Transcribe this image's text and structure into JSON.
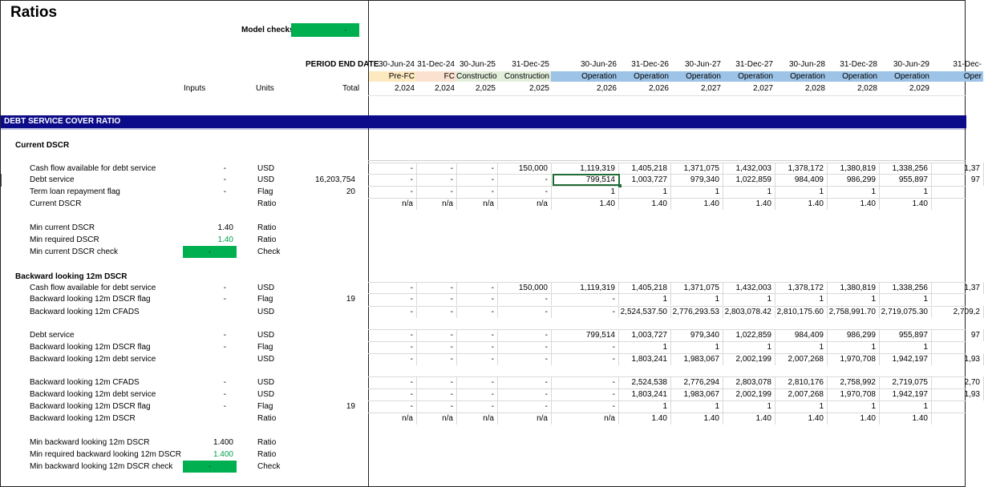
{
  "sheet": {
    "title": "Ratios",
    "model_checks_label": "Model checks",
    "model_checks_value": "-",
    "period_end_label": "PERIOD END DATE",
    "col_inputs": "Inputs",
    "col_units": "Units",
    "col_total": "Total",
    "section_band": "DEBT SERVICE COVER RATIO"
  },
  "colors": {
    "band": "#0c0c8a",
    "check_green": "#00b050",
    "prefc": "#fde9c0",
    "fc": "#fbe1cf",
    "construction": "#e2efda",
    "operation": "#9dc3e6"
  },
  "periods": [
    {
      "date": "30-Jun-24",
      "phase": "Pre-FC",
      "year": "2,024",
      "color": "#fde9c0"
    },
    {
      "date": "31-Dec-24",
      "phase": "FC",
      "year": "2,024",
      "color": "#fbe1cf"
    },
    {
      "date": "30-Jun-25",
      "phase": "Construction",
      "year": "2,025",
      "color": "#e2efda"
    },
    {
      "date": "31-Dec-25",
      "phase": "Construction",
      "year": "2,025",
      "color": "#e2efda"
    },
    {
      "date": "30-Jun-26",
      "phase": "Operation",
      "year": "2,026",
      "color": "#9dc3e6"
    },
    {
      "date": "31-Dec-26",
      "phase": "Operation",
      "year": "2,026",
      "color": "#9dc3e6"
    },
    {
      "date": "30-Jun-27",
      "phase": "Operation",
      "year": "2,027",
      "color": "#9dc3e6"
    },
    {
      "date": "31-Dec-27",
      "phase": "Operation",
      "year": "2,027",
      "color": "#9dc3e6"
    },
    {
      "date": "30-Jun-28",
      "phase": "Operation",
      "year": "2,028",
      "color": "#9dc3e6"
    },
    {
      "date": "31-Dec-28",
      "phase": "Operation",
      "year": "2,028",
      "color": "#9dc3e6"
    },
    {
      "date": "30-Jun-29",
      "phase": "Operation",
      "year": "2,029",
      "color": "#9dc3e6"
    },
    {
      "date": "31-Dec-",
      "phase": "Oper",
      "year": "",
      "color": "#9dc3e6"
    }
  ],
  "current_dscr": {
    "heading": "Current DSCR",
    "rows": [
      {
        "label": "Cash flow available for debt service",
        "input": "-",
        "unit": "USD",
        "total": "",
        "vals": [
          "-",
          "-",
          "-",
          "150,000",
          "1,119,319",
          "1,405,218",
          "1,371,075",
          "1,432,003",
          "1,378,172",
          "1,380,819",
          "1,338,256",
          "1,37"
        ]
      },
      {
        "label": "Debt service",
        "input": "-",
        "unit": "USD",
        "total": "16,203,754",
        "vals": [
          "-",
          "-",
          "-",
          "-",
          "799,514",
          "1,003,727",
          "979,340",
          "1,022,859",
          "984,409",
          "986,299",
          "955,897",
          "97"
        ]
      },
      {
        "label": "Term loan repayment flag",
        "input": "-",
        "unit": "Flag",
        "total": "20",
        "vals": [
          "-",
          "-",
          "-",
          "-",
          "1",
          "1",
          "1",
          "1",
          "1",
          "1",
          "1",
          ""
        ]
      },
      {
        "label": "Current DSCR",
        "input": "",
        "unit": "Ratio",
        "total": "",
        "vals": [
          "n/a",
          "n/a",
          "n/a",
          "n/a",
          "1.40",
          "1.40",
          "1.40",
          "1.40",
          "1.40",
          "1.40",
          "1.40",
          ""
        ]
      }
    ],
    "min_rows": [
      {
        "label": "Min current DSCR",
        "input": "1.40",
        "unit": "Ratio"
      },
      {
        "label": "Min required DSCR",
        "input": "1.40",
        "unit": "Ratio"
      },
      {
        "label": "Min current DSCR check",
        "input": "-",
        "unit": "Check"
      }
    ]
  },
  "backward": {
    "heading": "Backward looking 12m DSCR",
    "block1": [
      {
        "label": "Cash flow available for debt service",
        "input": "-",
        "unit": "USD",
        "total": "",
        "vals": [
          "-",
          "-",
          "-",
          "150,000",
          "1,119,319",
          "1,405,218",
          "1,371,075",
          "1,432,003",
          "1,378,172",
          "1,380,819",
          "1,338,256",
          "1,37"
        ]
      },
      {
        "label": "Backward looking 12m DSCR flag",
        "input": "-",
        "unit": "Flag",
        "total": "19",
        "vals": [
          "-",
          "-",
          "-",
          "-",
          "-",
          "1",
          "1",
          "1",
          "1",
          "1",
          "1",
          ""
        ]
      },
      {
        "label": "Backward looking 12m CFADS",
        "input": "",
        "unit": "USD",
        "total": "",
        "vals": [
          "-",
          "-",
          "-",
          "-",
          "-",
          "2,524,537.50",
          "2,776,293.53",
          "2,803,078.42",
          "2,810,175.60",
          "2,758,991.70",
          "2,719,075.30",
          "2,709,2"
        ]
      }
    ],
    "block2": [
      {
        "label": "Debt service",
        "input": "-",
        "unit": "USD",
        "total": "",
        "vals": [
          "-",
          "-",
          "-",
          "-",
          "799,514",
          "1,003,727",
          "979,340",
          "1,022,859",
          "984,409",
          "986,299",
          "955,897",
          "97"
        ]
      },
      {
        "label": "Backward looking 12m DSCR flag",
        "input": "-",
        "unit": "Flag",
        "total": "",
        "vals": [
          "-",
          "-",
          "-",
          "-",
          "-",
          "1",
          "1",
          "1",
          "1",
          "1",
          "1",
          ""
        ]
      },
      {
        "label": "Backward looking 12m debt service",
        "input": "",
        "unit": "USD",
        "total": "",
        "vals": [
          "-",
          "-",
          "-",
          "-",
          "-",
          "1,803,241",
          "1,983,067",
          "2,002,199",
          "2,007,268",
          "1,970,708",
          "1,942,197",
          "1,93"
        ]
      }
    ],
    "block3": [
      {
        "label": "Backward looking 12m CFADS",
        "input": "-",
        "unit": "USD",
        "total": "",
        "vals": [
          "-",
          "-",
          "-",
          "-",
          "-",
          "2,524,538",
          "2,776,294",
          "2,803,078",
          "2,810,176",
          "2,758,992",
          "2,719,075",
          "2,70"
        ]
      },
      {
        "label": "Backward looking 12m debt service",
        "input": "-",
        "unit": "USD",
        "total": "",
        "vals": [
          "-",
          "-",
          "-",
          "-",
          "-",
          "1,803,241",
          "1,983,067",
          "2,002,199",
          "2,007,268",
          "1,970,708",
          "1,942,197",
          "1,93"
        ]
      },
      {
        "label": "Backward looking 12m DSCR flag",
        "input": "-",
        "unit": "Flag",
        "total": "19",
        "vals": [
          "-",
          "-",
          "-",
          "-",
          "-",
          "1",
          "1",
          "1",
          "1",
          "1",
          "1",
          ""
        ]
      },
      {
        "label": "Backward looking 12m DSCR",
        "input": "",
        "unit": "Ratio",
        "total": "",
        "vals": [
          "n/a",
          "n/a",
          "n/a",
          "n/a",
          "n/a",
          "1.40",
          "1.40",
          "1.40",
          "1.40",
          "1.40",
          "1.40",
          ""
        ]
      }
    ],
    "min_rows": [
      {
        "label": "Min backward looking 12m DSCR",
        "input": "1.400",
        "unit": "Ratio"
      },
      {
        "label": "Min required backward looking 12m DSCR",
        "input": "1.400",
        "unit": "Ratio"
      },
      {
        "label": "Min backward looking 12m DSCR check",
        "input": "-",
        "unit": "Check"
      }
    ]
  }
}
